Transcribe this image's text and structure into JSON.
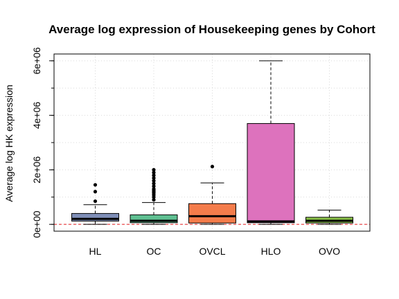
{
  "chart_data": {
    "type": "box",
    "title": "Average log expression of Housekeeping genes by Cohort",
    "xlabel": "",
    "ylabel": "Average log HK expression",
    "categories": [
      "HL",
      "OC",
      "OVCL",
      "HLO",
      "OVO"
    ],
    "y_ticks": [
      0,
      2000000,
      4000000,
      6000000
    ],
    "y_tick_labels": [
      "0e+00",
      "2e+06",
      "4e+06",
      "6e+06"
    ],
    "ylim": [
      -250000,
      6250000
    ],
    "grid": true,
    "reference_line": {
      "y": 0,
      "style": "dashed",
      "color": "#e31a1c"
    },
    "boxes": [
      {
        "name": "HL",
        "min": 0,
        "q1": 120000,
        "median": 200000,
        "q3": 400000,
        "max": 720000,
        "outliers": [
          850000,
          1200000,
          1450000
        ],
        "color": "#7f8fb8"
      },
      {
        "name": "OC",
        "min": 0,
        "q1": 60000,
        "median": 130000,
        "q3": 350000,
        "max": 800000,
        "outliers": [
          900000,
          1000000,
          1080000,
          1150000,
          1200000,
          1250000,
          1300000,
          1400000,
          1500000,
          1600000,
          1700000,
          1800000,
          1900000,
          2000000
        ],
        "color": "#5fbf91"
      },
      {
        "name": "OVCL",
        "min": 0,
        "q1": 50000,
        "median": 300000,
        "q3": 760000,
        "max": 1520000,
        "outliers": [
          2120000
        ],
        "color": "#f47c4b"
      },
      {
        "name": "HLO",
        "min": 0,
        "q1": 60000,
        "median": 110000,
        "q3": 3700000,
        "max": 6000000,
        "outliers": [],
        "color": "#dd72bd"
      },
      {
        "name": "OVO",
        "min": 0,
        "q1": 50000,
        "median": 130000,
        "q3": 260000,
        "max": 520000,
        "outliers": [],
        "color": "#8bc34a"
      }
    ]
  }
}
